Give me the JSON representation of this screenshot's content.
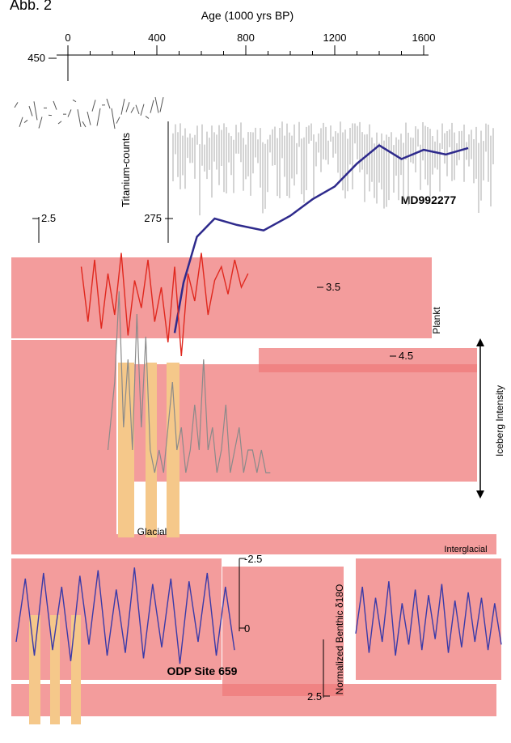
{
  "figure_label": "Abb. 2",
  "colors": {
    "label_green": "#4cc21a",
    "titanium": "#a9a9a9",
    "ti_trend": "#2e2a8c",
    "planktic": "#e0281e",
    "benthic": "#3a3aa8",
    "ird": "#8a8a8a",
    "glacial_band": "#f5c88a",
    "pink_block": "#ef7b7b",
    "label_pink": "#d9609a"
  },
  "chart_data": [
    {
      "type": "line",
      "title": "Age (1000 yrs BP)",
      "xlabel": "Age (1000 yrs BP)",
      "x_ticks": [
        "0",
        "400",
        "800",
        "1200",
        "1600"
      ],
      "xlim": [
        0,
        1800
      ],
      "ylabel": "Titanium-counts",
      "y_ticks": [
        "450",
        "275"
      ],
      "site_label": "MD992277",
      "series": [
        {
          "x": [
            480,
            520,
            580,
            660,
            760,
            880,
            1000,
            1100,
            1200,
            1300,
            1400,
            1500,
            1600,
            1700,
            1800
          ],
          "y": [
            150,
            205,
            255,
            275,
            268,
            262,
            278,
            296,
            310,
            335,
            355,
            340,
            350,
            345,
            352
          ]
        }
      ]
    },
    {
      "type": "line",
      "ylabel": "Plankt",
      "y_ticks": [
        "2.5",
        "3.5",
        "4.5"
      ],
      "series": [
        {
          "x": [
            400,
            430,
            460,
            490,
            520,
            550,
            580,
            610,
            640,
            670,
            700,
            730,
            760,
            790,
            820,
            850,
            880,
            910,
            940,
            970,
            1000,
            1030,
            1060,
            1090,
            1120,
            1150
          ],
          "y": [
            3.2,
            4.0,
            3.1,
            4.1,
            3.3,
            3.9,
            3.0,
            4.2,
            3.4,
            3.8,
            3.1,
            4.0,
            3.5,
            4.3,
            3.2,
            4.5,
            3.3,
            3.7,
            3.0,
            3.9,
            3.4,
            3.2,
            3.6,
            3.1,
            3.5,
            3.3
          ]
        }
      ]
    },
    {
      "type": "line",
      "ylabel": "Iceberg Intensity",
      "annotation": "Glacial",
      "series": [
        {
          "x": [
            450,
            480,
            500,
            520,
            540,
            560,
            580,
            600,
            620,
            640,
            660,
            680,
            700,
            720,
            740,
            760,
            780,
            800,
            820,
            840,
            860,
            880,
            900,
            920,
            940,
            960,
            980,
            1000,
            1020,
            1040,
            1060,
            1080,
            1100,
            1120,
            1140,
            1160,
            1180
          ],
          "y": [
            0.2,
            0.5,
            0.9,
            0.3,
            0.6,
            0.2,
            0.8,
            0.3,
            0.7,
            0.2,
            0.1,
            0.2,
            0.1,
            0.3,
            0.5,
            0.2,
            0.3,
            0.1,
            0.2,
            0.4,
            0.2,
            0.6,
            0.2,
            0.3,
            0.1,
            0.2,
            0.4,
            0.1,
            0.2,
            0.3,
            0.1,
            0.2,
            0.2,
            0.1,
            0.2,
            0.1,
            0.1
          ]
        }
      ]
    },
    {
      "type": "line",
      "ylabel": "Normalized Benthic δ18O",
      "y_ticks": [
        "-2.5",
        "0",
        "2.5"
      ],
      "site_label": "ODP Site 659",
      "annotation": "Interglacial",
      "series": [
        {
          "x": [
            0,
            30,
            60,
            90,
            120,
            150,
            180,
            210,
            240,
            270,
            300,
            330,
            360,
            390,
            420,
            450,
            480,
            510,
            540,
            570,
            600,
            630,
            660,
            690,
            720
          ],
          "y": [
            0.5,
            -1.8,
            1.0,
            -2.0,
            0.8,
            -1.5,
            1.2,
            -1.9,
            0.6,
            -2.1,
            1.0,
            -1.4,
            0.9,
            -2.2,
            1.1,
            -1.6,
            0.7,
            -1.8,
            1.3,
            -1.7,
            0.5,
            -2.0,
            1.0,
            -1.5,
            0.8
          ]
        },
        {
          "x": [
            1120,
            1150,
            1180,
            1210,
            1240,
            1270,
            1300,
            1330,
            1360,
            1390,
            1420,
            1450,
            1480,
            1510,
            1540,
            1570,
            1600,
            1630,
            1660,
            1690,
            1720,
            1750,
            1780
          ],
          "y": [
            0.2,
            -1.5,
            0.9,
            -1.1,
            0.5,
            -1.7,
            1.0,
            -0.9,
            0.6,
            -1.4,
            0.8,
            -1.2,
            0.4,
            -1.6,
            0.9,
            -1.0,
            0.7,
            -1.3,
            0.5,
            -1.1,
            0.8,
            -0.9,
            0.6
          ]
        }
      ]
    }
  ]
}
